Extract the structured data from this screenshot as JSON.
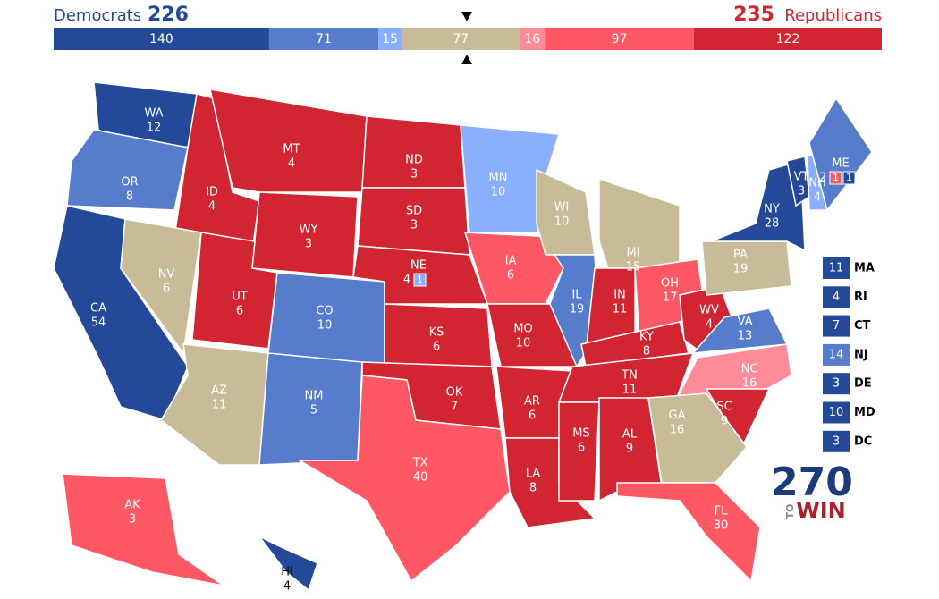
{
  "header": {
    "dem_label": "Democrats",
    "dem_total": 226,
    "rep_total": 235,
    "rep_label": "Republicans"
  },
  "bar": {
    "segments": [
      {
        "value": 140,
        "color": "#244999"
      },
      {
        "value": 71,
        "color": "#577ccc"
      },
      {
        "value": 15,
        "color": "#8aafff"
      },
      {
        "value": 77,
        "color": "#c8bc98"
      },
      {
        "value": 16,
        "color": "#ff8b98"
      },
      {
        "value": 97,
        "color": "#ff5865"
      },
      {
        "value": 122,
        "color": "#d22532"
      }
    ]
  },
  "map": {
    "states": [
      {
        "abbr": "WA",
        "votes": 12,
        "color": "#244999"
      },
      {
        "abbr": "OR",
        "votes": 8,
        "color": "#577ccc"
      },
      {
        "abbr": "CA",
        "votes": 54,
        "color": "#244999"
      },
      {
        "abbr": "ID",
        "votes": 4,
        "color": "#d22532"
      },
      {
        "abbr": "NV",
        "votes": 6,
        "color": "#c8bc98"
      },
      {
        "abbr": "MT",
        "votes": 4,
        "color": "#d22532"
      },
      {
        "abbr": "WY",
        "votes": 3,
        "color": "#d22532"
      },
      {
        "abbr": "UT",
        "votes": 6,
        "color": "#d22532"
      },
      {
        "abbr": "AZ",
        "votes": 11,
        "color": "#c8bc98"
      },
      {
        "abbr": "CO",
        "votes": 10,
        "color": "#577ccc"
      },
      {
        "abbr": "NM",
        "votes": 5,
        "color": "#577ccc"
      },
      {
        "abbr": "ND",
        "votes": 3,
        "color": "#d22532"
      },
      {
        "abbr": "SD",
        "votes": 3,
        "color": "#d22532"
      },
      {
        "abbr": "NE",
        "votes": 4,
        "color": "#d22532",
        "districts": [
          {
            "votes": 1,
            "color": "#8aafff"
          }
        ]
      },
      {
        "abbr": "KS",
        "votes": 6,
        "color": "#d22532"
      },
      {
        "abbr": "OK",
        "votes": 7,
        "color": "#d22532"
      },
      {
        "abbr": "TX",
        "votes": 40,
        "color": "#ff5865"
      },
      {
        "abbr": "MN",
        "votes": 10,
        "color": "#8aafff"
      },
      {
        "abbr": "IA",
        "votes": 6,
        "color": "#ff5865"
      },
      {
        "abbr": "MO",
        "votes": 10,
        "color": "#d22532"
      },
      {
        "abbr": "AR",
        "votes": 6,
        "color": "#d22532"
      },
      {
        "abbr": "LA",
        "votes": 8,
        "color": "#d22532"
      },
      {
        "abbr": "WI",
        "votes": 10,
        "color": "#c8bc98"
      },
      {
        "abbr": "MI",
        "votes": 15,
        "color": "#c8bc98"
      },
      {
        "abbr": "IL",
        "votes": 19,
        "color": "#577ccc"
      },
      {
        "abbr": "IN",
        "votes": 11,
        "color": "#d22532"
      },
      {
        "abbr": "OH",
        "votes": 17,
        "color": "#ff5865"
      },
      {
        "abbr": "KY",
        "votes": 8,
        "color": "#d22532"
      },
      {
        "abbr": "TN",
        "votes": 11,
        "color": "#d22532"
      },
      {
        "abbr": "MS",
        "votes": 6,
        "color": "#d22532"
      },
      {
        "abbr": "AL",
        "votes": 9,
        "color": "#d22532"
      },
      {
        "abbr": "WV",
        "votes": 4,
        "color": "#d22532"
      },
      {
        "abbr": "VA",
        "votes": 13,
        "color": "#577ccc"
      },
      {
        "abbr": "NC",
        "votes": 16,
        "color": "#ff8b98"
      },
      {
        "abbr": "SC",
        "votes": 9,
        "color": "#d22532"
      },
      {
        "abbr": "GA",
        "votes": 16,
        "color": "#c8bc98"
      },
      {
        "abbr": "FL",
        "votes": 30,
        "color": "#ff5865"
      },
      {
        "abbr": "PA",
        "votes": 19,
        "color": "#c8bc98"
      },
      {
        "abbr": "NY",
        "votes": 28,
        "color": "#244999"
      },
      {
        "abbr": "VT",
        "votes": 3,
        "color": "#244999"
      },
      {
        "abbr": "NH",
        "votes": 4,
        "color": "#8aafff"
      },
      {
        "abbr": "ME",
        "votes": 2,
        "color": "#577ccc",
        "districts": [
          {
            "votes": 1,
            "color": "#ff5865"
          },
          {
            "votes": 1,
            "color": "#244999"
          }
        ]
      },
      {
        "abbr": "AK",
        "votes": 3,
        "color": "#ff5865"
      },
      {
        "abbr": "HI",
        "votes": 4,
        "color": "#244999"
      }
    ]
  },
  "side_states": [
    {
      "abbr": "MA",
      "votes": 11,
      "color": "#244999"
    },
    {
      "abbr": "RI",
      "votes": 4,
      "color": "#244999"
    },
    {
      "abbr": "CT",
      "votes": 7,
      "color": "#244999"
    },
    {
      "abbr": "NJ",
      "votes": 14,
      "color": "#577ccc"
    },
    {
      "abbr": "DE",
      "votes": 3,
      "color": "#244999"
    },
    {
      "abbr": "MD",
      "votes": 10,
      "color": "#244999"
    },
    {
      "abbr": "DC",
      "votes": 3,
      "color": "#244999"
    }
  ],
  "logo": {
    "number": "270",
    "small": "TO",
    "word": "WIN"
  }
}
